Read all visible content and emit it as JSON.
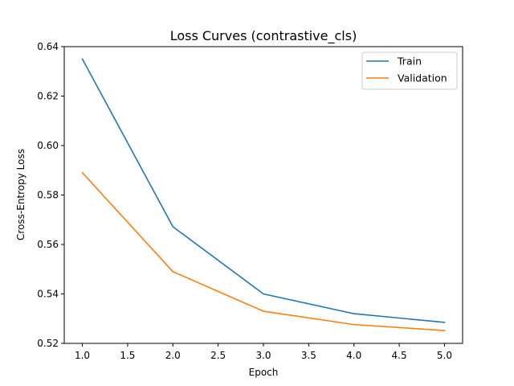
{
  "chart_data": {
    "type": "line",
    "title": "Loss Curves (contrastive_cls)",
    "xlabel": "Epoch",
    "ylabel": "Cross-Entropy Loss",
    "xlim": [
      0.8,
      5.2
    ],
    "ylim": [
      0.52,
      0.64
    ],
    "xticks": [
      1.0,
      1.5,
      2.0,
      2.5,
      3.0,
      3.5,
      4.0,
      4.5,
      5.0
    ],
    "xtick_labels": [
      "1.0",
      "1.5",
      "2.0",
      "2.5",
      "3.0",
      "3.5",
      "4.0",
      "4.5",
      "5.0"
    ],
    "yticks": [
      0.52,
      0.54,
      0.56,
      0.58,
      0.6,
      0.62,
      0.64
    ],
    "ytick_labels": [
      "0.52",
      "0.54",
      "0.56",
      "0.58",
      "0.60",
      "0.62",
      "0.64"
    ],
    "grid": false,
    "legend_position": "top-right",
    "x": [
      1,
      2,
      3,
      4,
      5
    ],
    "series": [
      {
        "name": "Train",
        "color": "#1f77b4",
        "values": [
          0.635,
          0.5672,
          0.54,
          0.532,
          0.5285
        ]
      },
      {
        "name": "Validation",
        "color": "#ff7f0e",
        "values": [
          0.589,
          0.549,
          0.533,
          0.5276,
          0.5252
        ]
      }
    ]
  }
}
